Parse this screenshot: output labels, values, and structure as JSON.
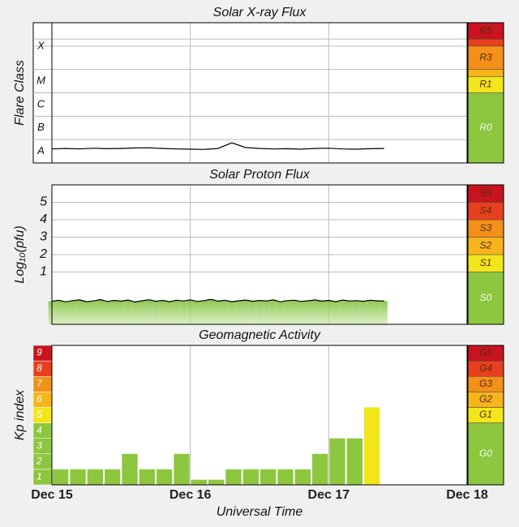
{
  "chart_data": [
    {
      "type": "line",
      "title": "Solar X-ray Flux",
      "ylabel": "Flare Class",
      "color": "#000000",
      "x": [
        0,
        0.1,
        0.2,
        0.3,
        0.4,
        0.5,
        0.6,
        0.7,
        0.8,
        0.9,
        1.0,
        1.1,
        1.2,
        1.3,
        1.4,
        1.5,
        1.6,
        1.7,
        1.8,
        1.9,
        2.0,
        2.1,
        2.2,
        2.3,
        2.4
      ],
      "values": [
        -7.4,
        -7.38,
        -7.4,
        -7.37,
        -7.39,
        -7.38,
        -7.36,
        -7.35,
        -7.38,
        -7.4,
        -7.41,
        -7.42,
        -7.38,
        -7.14,
        -7.34,
        -7.38,
        -7.4,
        -7.39,
        -7.41,
        -7.38,
        -7.37,
        -7.4,
        -7.41,
        -7.39,
        -7.38
      ],
      "xlim": [
        0,
        3
      ],
      "xticks": [
        0,
        1,
        2,
        3
      ],
      "ylim": [
        -8,
        -2
      ],
      "yticks": [
        {
          "value": -7.5,
          "label": "A"
        },
        {
          "value": -6.5,
          "label": "B"
        },
        {
          "value": -5.5,
          "label": "C"
        },
        {
          "value": -4.5,
          "label": "M"
        },
        {
          "value": -3,
          "label": "X"
        }
      ],
      "ygrid": [
        -7,
        -6,
        -5,
        -4,
        -3,
        -2.7
      ],
      "scale": [
        {
          "label": "R0",
          "from": -8,
          "to": -5,
          "color": "#8dc63f"
        },
        {
          "label": "R1",
          "from": -5,
          "to": -4.3,
          "color": "#f2e51b"
        },
        {
          "label": null,
          "from": -4.3,
          "to": -4,
          "color": "#f7b51b"
        },
        {
          "label": "R3",
          "from": -4,
          "to": -3,
          "color": "#f39019"
        },
        {
          "label": null,
          "from": -3,
          "to": -2.7,
          "color": "#e8401e"
        },
        {
          "label": "R5",
          "from": -2.7,
          "to": -2,
          "color": "#c8141e"
        }
      ]
    },
    {
      "type": "area",
      "title": "Solar Proton Flux",
      "ylabel": "Log₁₀(pfu)",
      "color": "#000000",
      "fill": "#8dc63f",
      "x": [
        0,
        0.05,
        0.1,
        0.15,
        0.2,
        0.25,
        0.3,
        0.35,
        0.4,
        0.45,
        0.5,
        0.55,
        0.6,
        0.65,
        0.7,
        0.75,
        0.8,
        0.85,
        0.9,
        0.95,
        1.0,
        1.05,
        1.1,
        1.15,
        1.2,
        1.25,
        1.3,
        1.35,
        1.4,
        1.45,
        1.5,
        1.55,
        1.6,
        1.65,
        1.7,
        1.75,
        1.8,
        1.85,
        1.9,
        1.95,
        2.0,
        2.05,
        2.1,
        2.15,
        2.2,
        2.25,
        2.3,
        2.35,
        2.4
      ],
      "values": [
        -0.68,
        -0.62,
        -0.71,
        -0.64,
        -0.6,
        -0.7,
        -0.66,
        -0.58,
        -0.69,
        -0.63,
        -0.67,
        -0.61,
        -0.72,
        -0.65,
        -0.59,
        -0.68,
        -0.63,
        -0.7,
        -0.62,
        -0.66,
        -0.6,
        -0.69,
        -0.64,
        -0.57,
        -0.67,
        -0.62,
        -0.7,
        -0.65,
        -0.61,
        -0.68,
        -0.63,
        -0.66,
        -0.6,
        -0.71,
        -0.64,
        -0.62,
        -0.69,
        -0.65,
        -0.6,
        -0.67,
        -0.63,
        -0.7,
        -0.61,
        -0.66,
        -0.64,
        -0.68,
        -0.62,
        -0.65,
        -0.67
      ],
      "xlim": [
        0,
        3
      ],
      "xticks": [
        0,
        1,
        2,
        3
      ],
      "ylim": [
        -2,
        6
      ],
      "yticks": [
        1,
        2,
        3,
        4,
        5
      ],
      "grid": true,
      "scale": [
        {
          "label": "S0",
          "from": -2,
          "to": 1,
          "color": "#8dc63f"
        },
        {
          "label": "S1",
          "from": 1,
          "to": 2,
          "color": "#f2e51b"
        },
        {
          "label": "S2",
          "from": 2,
          "to": 3,
          "color": "#f7b51b"
        },
        {
          "label": "S3",
          "from": 3,
          "to": 4,
          "color": "#f39019"
        },
        {
          "label": "S4",
          "from": 4,
          "to": 5,
          "color": "#e8401e"
        },
        {
          "label": "S5",
          "from": 5,
          "to": 6,
          "color": "#c8141e"
        }
      ]
    },
    {
      "type": "bar",
      "title": "Geomagnetic Activity",
      "ylabel": "Kp index",
      "xlabel": "Universal Time",
      "x": [
        0,
        0.125,
        0.25,
        0.375,
        0.5,
        0.625,
        0.75,
        0.875,
        1.0,
        1.125,
        1.25,
        1.375,
        1.5,
        1.625,
        1.75,
        1.875,
        2.0,
        2.125,
        2.25
      ],
      "values": [
        1,
        1,
        1,
        1,
        2,
        1,
        1,
        2,
        0.33,
        0.33,
        1,
        1,
        1,
        1,
        1,
        2,
        3,
        3,
        5
      ],
      "xlim": [
        0,
        3
      ],
      "xticks": [
        {
          "value": 0,
          "label": "Dec 15"
        },
        {
          "value": 1,
          "label": "Dec 16"
        },
        {
          "value": 2,
          "label": "Dec 17"
        },
        {
          "value": 3,
          "label": "Dec 18"
        }
      ],
      "ylim": [
        0,
        9
      ],
      "levels": [
        {
          "label": "1",
          "color": "#8dc63f"
        },
        {
          "label": "2",
          "color": "#8dc63f"
        },
        {
          "label": "3",
          "color": "#8dc63f"
        },
        {
          "label": "4",
          "color": "#8dc63f"
        },
        {
          "label": "5",
          "color": "#f2e51b"
        },
        {
          "label": "6",
          "color": "#f7b51b"
        },
        {
          "label": "7",
          "color": "#f39019"
        },
        {
          "label": "8",
          "color": "#e8401e"
        },
        {
          "label": "9",
          "color": "#c8141e"
        }
      ],
      "scale": [
        {
          "label": "G0",
          "from": 0,
          "to": 4,
          "color": "#8dc63f"
        },
        {
          "label": "G1",
          "from": 4,
          "to": 5,
          "color": "#f2e51b"
        },
        {
          "label": "G2",
          "from": 5,
          "to": 6,
          "color": "#f7b51b"
        },
        {
          "label": "G3",
          "from": 6,
          "to": 7,
          "color": "#f39019"
        },
        {
          "label": "G4",
          "from": 7,
          "to": 8,
          "color": "#e8401e"
        },
        {
          "label": "G5",
          "from": 8,
          "to": 9,
          "color": "#c8141e"
        }
      ]
    }
  ]
}
